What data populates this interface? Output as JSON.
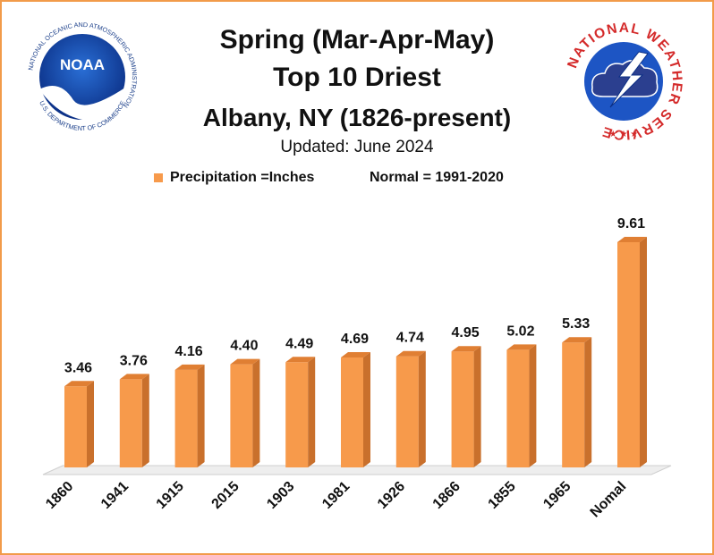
{
  "header": {
    "title_line1": "Spring (Mar-Apr-May)",
    "title_line2": "Top 10 Driest",
    "title_line3": "Albany, NY (1826-present)",
    "updated": "Updated:  June 2024",
    "legend_label": "Precipitation =Inches",
    "normal_note": "Normal = 1991-2020"
  },
  "logos": {
    "noaa_text": "NOAA",
    "noaa_ring_text": "NATIONAL OCEANIC AND ATMOSPHERIC ADMINISTRATION",
    "noaa_bottom_text": "U.S. DEPARTMENT OF COMMERCE",
    "nws_ring_text": "NATIONAL WEATHER SERVICE"
  },
  "colors": {
    "bar_front": "#f79a4b",
    "bar_side": "#c9702c",
    "bar_top": "#e07f33",
    "frame": "#f29b4a",
    "floor": "#eeeeee"
  },
  "chart_data": {
    "type": "bar",
    "categories": [
      "1860",
      "1941",
      "1915",
      "2015",
      "1903",
      "1981",
      "1926",
      "1866",
      "1855",
      "1965",
      "Nomal"
    ],
    "values": [
      3.46,
      3.76,
      4.16,
      4.4,
      4.49,
      4.69,
      4.74,
      4.95,
      5.02,
      5.33,
      9.61
    ],
    "value_labels": [
      "3.46",
      "3.76",
      "4.16",
      "4.40",
      "4.49",
      "4.69",
      "4.74",
      "4.95",
      "5.02",
      "5.33",
      "9.61"
    ],
    "title": "Spring (Mar-Apr-May) Top 10 Driest",
    "legend": "Precipitation =Inches",
    "ylim": [
      0,
      10
    ],
    "grid": false,
    "style": "3d-bar"
  }
}
